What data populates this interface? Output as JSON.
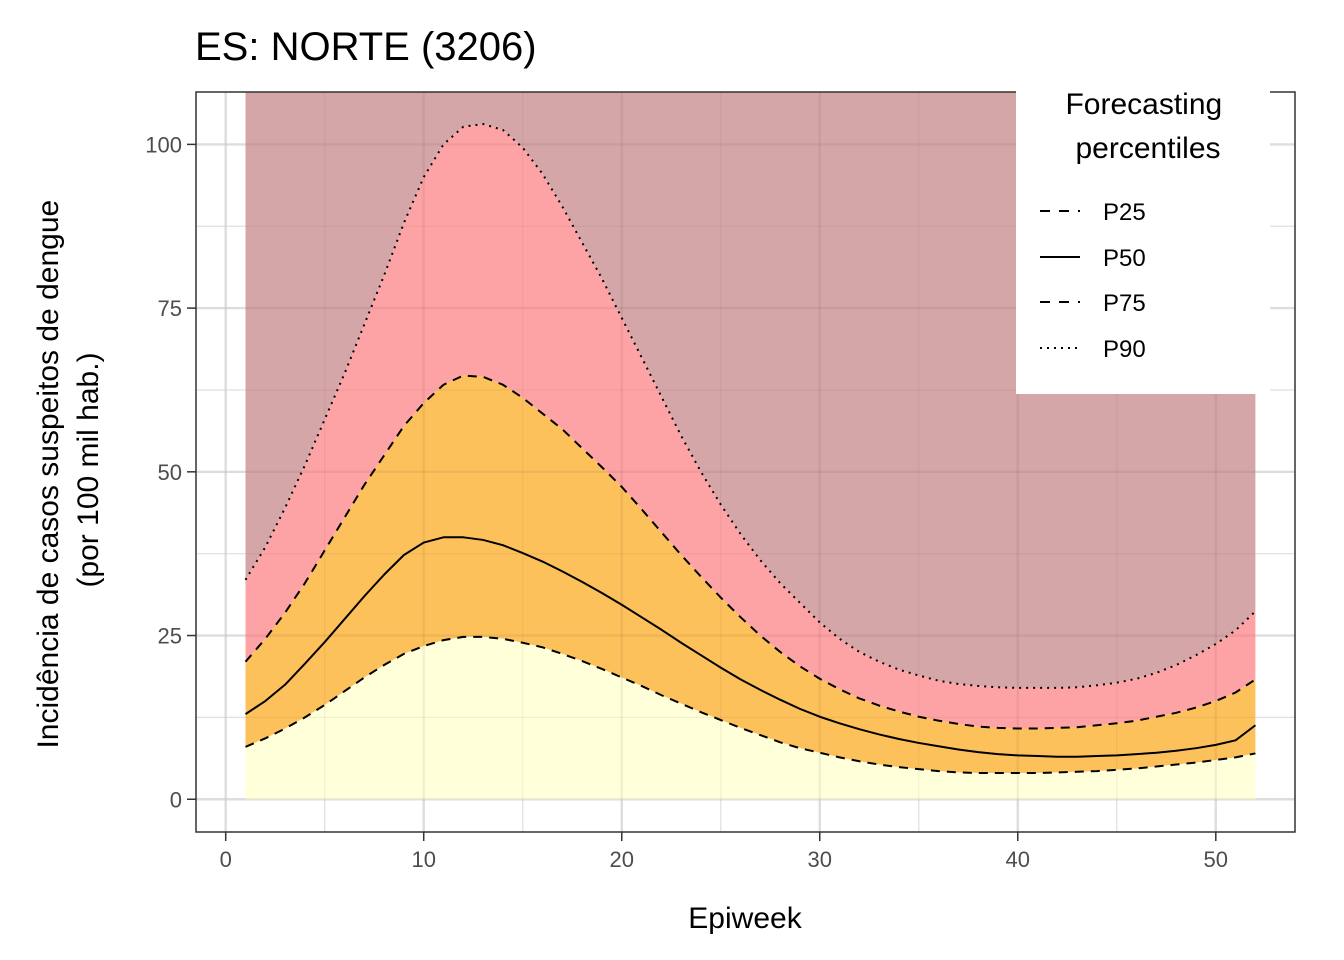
{
  "chart_data": {
    "type": "area",
    "title": "ES: NORTE (3206)",
    "xlabel": "Epiweek",
    "ylabel_lines": [
      "Incidência de casos suspeitos de dengue",
      "(por 100 mil hab.)"
    ],
    "xlim": [
      -1.5,
      54
    ],
    "ylim": [
      -5,
      108
    ],
    "xticks": [
      0,
      10,
      20,
      30,
      40,
      50
    ],
    "yticks": [
      0,
      25,
      50,
      75,
      100
    ],
    "grid": true,
    "legend": {
      "title_lines": [
        "Forecasting",
        "percentiles"
      ],
      "placement": "top-right",
      "entries": [
        {
          "label": "P25",
          "dash": "dashed"
        },
        {
          "label": "P50",
          "dash": "solid"
        },
        {
          "label": "P75",
          "dash": "dashed"
        },
        {
          "label": "P90",
          "dash": "dotted"
        }
      ]
    },
    "band_colors": {
      "below_p25": "#ffffd9",
      "p25_to_p75": "#fdc15c",
      "p75_to_p90": "#fea3a5",
      "above_p90": "#d5a6a7"
    },
    "upper_bound": 108,
    "x": [
      1,
      2,
      3,
      4,
      5,
      6,
      7,
      8,
      9,
      10,
      11,
      12,
      13,
      14,
      15,
      16,
      17,
      18,
      19,
      20,
      21,
      22,
      23,
      24,
      25,
      26,
      27,
      28,
      29,
      30,
      31,
      32,
      33,
      34,
      35,
      36,
      37,
      38,
      39,
      40,
      41,
      42,
      43,
      44,
      45,
      46,
      47,
      48,
      49,
      50,
      51,
      52
    ],
    "series": [
      {
        "name": "P25",
        "dash": "dashed",
        "values": [
          8.0,
          9.3,
          10.8,
          12.5,
          14.4,
          16.5,
          18.6,
          20.5,
          22.2,
          23.4,
          24.3,
          24.8,
          24.8,
          24.5,
          23.9,
          23.2,
          22.2,
          21.1,
          19.9,
          18.6,
          17.3,
          15.9,
          14.6,
          13.3,
          12.1,
          10.9,
          9.8,
          8.7,
          7.8,
          7.1,
          6.4,
          5.8,
          5.3,
          4.9,
          4.6,
          4.3,
          4.1,
          4.0,
          4.0,
          4.0,
          4.0,
          4.1,
          4.2,
          4.3,
          4.5,
          4.7,
          5.0,
          5.3,
          5.6,
          6.0,
          6.4,
          7.0
        ]
      },
      {
        "name": "P50",
        "dash": "solid",
        "values": [
          13.0,
          15.0,
          17.5,
          20.7,
          24.0,
          27.5,
          31.0,
          34.3,
          37.3,
          39.2,
          40.0,
          40.0,
          39.6,
          38.8,
          37.6,
          36.3,
          34.8,
          33.2,
          31.5,
          29.7,
          27.8,
          25.9,
          23.9,
          22.0,
          20.1,
          18.3,
          16.7,
          15.2,
          13.8,
          12.6,
          11.6,
          10.7,
          9.9,
          9.2,
          8.6,
          8.1,
          7.6,
          7.2,
          6.9,
          6.7,
          6.6,
          6.5,
          6.5,
          6.6,
          6.7,
          6.9,
          7.1,
          7.4,
          7.8,
          8.3,
          9.0,
          11.3
        ]
      },
      {
        "name": "P75",
        "dash": "dashed",
        "values": [
          21.0,
          24.5,
          28.5,
          33.0,
          38.0,
          43.0,
          48.0,
          52.5,
          57.0,
          60.5,
          63.3,
          64.7,
          64.5,
          63.3,
          61.3,
          58.9,
          56.5,
          53.6,
          50.7,
          47.7,
          44.3,
          40.8,
          37.3,
          34.0,
          30.8,
          27.8,
          25.0,
          22.5,
          20.3,
          18.4,
          16.8,
          15.4,
          14.3,
          13.4,
          12.6,
          12.0,
          11.5,
          11.1,
          10.9,
          10.8,
          10.8,
          10.9,
          11.0,
          11.3,
          11.6,
          12.0,
          12.6,
          13.2,
          14.0,
          15.0,
          16.3,
          18.3
        ]
      },
      {
        "name": "P90",
        "dash": "dotted",
        "values": [
          33.5,
          38.5,
          44.5,
          51.0,
          58.0,
          65.0,
          72.5,
          80.0,
          88.0,
          95.0,
          100.0,
          102.7,
          103.1,
          102.2,
          99.5,
          95.5,
          90.5,
          85.0,
          79.5,
          73.5,
          67.5,
          61.5,
          55.5,
          50.0,
          45.0,
          40.5,
          36.5,
          33.0,
          30.0,
          27.0,
          24.5,
          22.5,
          21.0,
          19.8,
          18.9,
          18.1,
          17.6,
          17.3,
          17.1,
          17.0,
          17.0,
          17.0,
          17.1,
          17.4,
          17.8,
          18.4,
          19.3,
          20.5,
          22.0,
          23.7,
          25.8,
          28.7
        ]
      }
    ]
  }
}
